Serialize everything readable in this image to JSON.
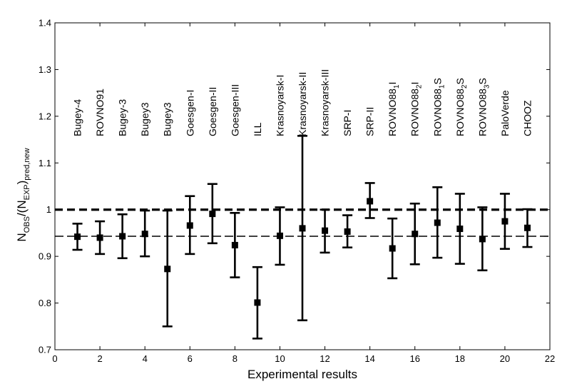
{
  "chart_data": {
    "type": "scatter",
    "xlabel": "Experimental results",
    "ylabel": {
      "main": "N",
      "sub1": "OBS",
      "mid": "/(N",
      "sub2": "EXP",
      "close": ")",
      "sub3": "pred,new"
    },
    "xlim": [
      0,
      22
    ],
    "ylim": [
      0.7,
      1.4
    ],
    "x_ticks": [
      0,
      2,
      4,
      6,
      8,
      10,
      12,
      14,
      16,
      18,
      20,
      22
    ],
    "y_ticks": [
      0.7,
      0.8,
      0.9,
      1.0,
      1.1,
      1.2,
      1.3,
      1.4
    ],
    "reference_lines": [
      {
        "y": 1.0,
        "style": "dashed-thick"
      },
      {
        "y": 0.943,
        "style": "dashed-thin"
      }
    ],
    "experiments": [
      {
        "x": 1,
        "label": "Bugey-4",
        "sub": "",
        "suffix": "",
        "y": 0.942,
        "low": 0.914,
        "high": 0.97
      },
      {
        "x": 2,
        "label": "ROVNO91",
        "sub": "",
        "suffix": "",
        "y": 0.94,
        "low": 0.905,
        "high": 0.975
      },
      {
        "x": 3,
        "label": "Bugey-3",
        "sub": "",
        "suffix": "",
        "y": 0.943,
        "low": 0.896,
        "high": 0.99
      },
      {
        "x": 4,
        "label": "Bugey3",
        "sub": "",
        "suffix": "",
        "y": 0.948,
        "low": 0.9,
        "high": 0.998
      },
      {
        "x": 5,
        "label": "Bugey3",
        "sub": "",
        "suffix": "",
        "y": 0.873,
        "low": 0.75,
        "high": 0.998
      },
      {
        "x": 6,
        "label": "Goesgen-I",
        "sub": "",
        "suffix": "",
        "y": 0.966,
        "low": 0.905,
        "high": 1.029
      },
      {
        "x": 7,
        "label": "Goesgen-II",
        "sub": "",
        "suffix": "",
        "y": 0.991,
        "low": 0.928,
        "high": 1.055
      },
      {
        "x": 8,
        "label": "Goesgen-III",
        "sub": "",
        "suffix": "",
        "y": 0.924,
        "low": 0.855,
        "high": 0.993
      },
      {
        "x": 9,
        "label": "ILL",
        "sub": "",
        "suffix": "",
        "y": 0.801,
        "low": 0.724,
        "high": 0.877
      },
      {
        "x": 10,
        "label": "Krasnoyarsk-I",
        "sub": "",
        "suffix": "",
        "y": 0.944,
        "low": 0.882,
        "high": 1.005
      },
      {
        "x": 11,
        "label": "Krasnoyarsk-II",
        "sub": "",
        "suffix": "",
        "y": 0.96,
        "low": 0.763,
        "high": 1.158
      },
      {
        "x": 12,
        "label": "Krasnoyarsk-III",
        "sub": "",
        "suffix": "",
        "y": 0.955,
        "low": 0.908,
        "high": 1.0
      },
      {
        "x": 13,
        "label": "SRP-I",
        "sub": "",
        "suffix": "",
        "y": 0.953,
        "low": 0.919,
        "high": 0.988
      },
      {
        "x": 14,
        "label": "SRP-II",
        "sub": "",
        "suffix": "",
        "y": 1.018,
        "low": 0.982,
        "high": 1.057
      },
      {
        "x": 15,
        "label": "ROVNO88",
        "sub": "1",
        "suffix": "I",
        "y": 0.917,
        "low": 0.853,
        "high": 0.981
      },
      {
        "x": 16,
        "label": "ROVNO88",
        "sub": "2",
        "suffix": "I",
        "y": 0.948,
        "low": 0.883,
        "high": 1.013
      },
      {
        "x": 17,
        "label": "ROVNO88",
        "sub": "1",
        "suffix": "S",
        "y": 0.972,
        "low": 0.897,
        "high": 1.048
      },
      {
        "x": 18,
        "label": "ROVNO88",
        "sub": "2",
        "suffix": "S",
        "y": 0.959,
        "low": 0.884,
        "high": 1.034
      },
      {
        "x": 19,
        "label": "ROVNO88",
        "sub": "3",
        "suffix": "S",
        "y": 0.937,
        "low": 0.87,
        "high": 1.005
      },
      {
        "x": 20,
        "label": "PaloVerde",
        "sub": "",
        "suffix": "",
        "y": 0.975,
        "low": 0.916,
        "high": 1.034
      },
      {
        "x": 21,
        "label": "CHOOZ",
        "sub": "",
        "suffix": "",
        "y": 0.961,
        "low": 0.92,
        "high": 1.001
      }
    ]
  }
}
